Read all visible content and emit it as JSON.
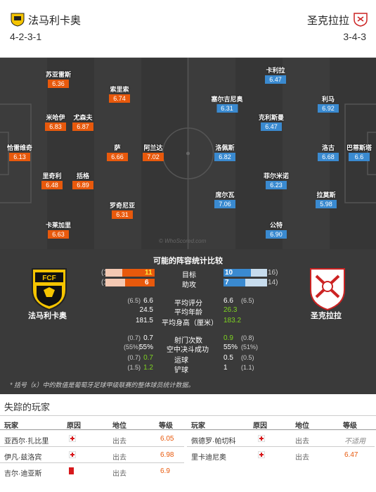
{
  "header": {
    "home_team": "法马利卡奥",
    "away_team": "圣克拉拉",
    "home_formation": "4-2-3-1",
    "away_formation": "3-4-3"
  },
  "pitch": {
    "watermark": "© WhoScored.com",
    "home_players": [
      {
        "name": "苏亚雷斯",
        "rating": "6.36"
      },
      {
        "name": "索里索",
        "rating": "6.74"
      },
      {
        "name": "米哈伊",
        "rating": "6.83"
      },
      {
        "name": "尤森夫",
        "rating": "6.87"
      },
      {
        "name": "恰雷维奇",
        "rating": "6.13"
      },
      {
        "name": "萨",
        "rating": "6.66"
      },
      {
        "name": "阿兰达",
        "rating": "7.02"
      },
      {
        "name": "里奇利",
        "rating": "6.48"
      },
      {
        "name": "括格",
        "rating": "6.89"
      },
      {
        "name": "罗奇尼亚",
        "rating": "6.31"
      },
      {
        "name": "卡莱加里",
        "rating": "6.63"
      }
    ],
    "away_players": [
      {
        "name": "卡利拉",
        "rating": "6.47"
      },
      {
        "name": "塞尔吉尼奥",
        "rating": "6.31"
      },
      {
        "name": "利马",
        "rating": "6.92"
      },
      {
        "name": "克利斯曼",
        "rating": "6.47"
      },
      {
        "name": "洛佩斯",
        "rating": "6.82"
      },
      {
        "name": "洛古",
        "rating": "6.68"
      },
      {
        "name": "巴蒂斯塔",
        "rating": "6.6"
      },
      {
        "name": "菲尔米诺",
        "rating": "6.23"
      },
      {
        "name": "席尔瓦",
        "rating": "7.06"
      },
      {
        "name": "拉莫斯",
        "rating": "5.98"
      },
      {
        "name": "公特",
        "rating": "6.90"
      }
    ]
  },
  "stats": {
    "title": "可能的阵容统计比较",
    "home_label": "法马利卡奥",
    "away_label": "圣克拉拉",
    "bars": [
      {
        "label": "目标",
        "home": "11",
        "away": "10",
        "home_total": "(17",
        "away_total": "16)",
        "home_share": 0.65,
        "away_share": 0.625
      },
      {
        "label": "助攻",
        "home": "6",
        "away": "7",
        "home_total": "(10",
        "away_total": "14)",
        "home_share": 0.6,
        "away_share": 0.5
      }
    ],
    "rows": [
      {
        "label": "平均评分",
        "home_paren": "(6.5)",
        "home": "6.6",
        "away": "6.6",
        "away_paren": "(6.5)",
        "away_green": false
      },
      {
        "label": "平均年龄",
        "home_paren": "",
        "home": "24.5",
        "away": "26.3",
        "away_paren": "",
        "away_green": true
      },
      {
        "label": "平均身高（厘米）",
        "home_paren": "",
        "home": "181.5",
        "away": "183.2",
        "away_paren": "",
        "away_green": true
      },
      {
        "label": "射门次数",
        "home_paren": "(0.7)",
        "home": "0.7",
        "away": "0.9",
        "away_paren": "(0.8)",
        "away_green": true
      },
      {
        "label": "空中决斗成功",
        "home_paren": "(55%)",
        "home": "55%",
        "away": "55%",
        "away_paren": "(51%)",
        "away_green": false
      },
      {
        "label": "运球",
        "home_paren": "(0.7)",
        "home": "0.7",
        "away": "0.5",
        "away_paren": "(0.5)",
        "away_green": false,
        "home_green": true
      },
      {
        "label": "铲球",
        "home_paren": "(1.5)",
        "home": "1.2",
        "away": "1",
        "away_paren": "(1.1)",
        "away_green": false,
        "home_green": true
      }
    ],
    "footnote": "* 括号（x）中的数值是葡萄牙足球甲级联赛的整体球员统计数据。"
  },
  "missing": {
    "title": "失踪的玩家",
    "headers": [
      "玩家",
      "原因",
      "地位",
      "等级"
    ],
    "home_rows": [
      {
        "player": "亚西尔·扎比里",
        "reason": "injury",
        "status": "出去",
        "rating": "6.05"
      },
      {
        "player": "伊凡·兹洛宾",
        "reason": "injury",
        "status": "出去",
        "rating": "6.98"
      },
      {
        "player": "吉尔·迪亚斯",
        "reason": "redcard",
        "status": "出去",
        "rating": "6.9"
      }
    ],
    "away_rows": [
      {
        "player": "佩德罗·帕切科",
        "reason": "injury",
        "status": "出去",
        "rating": "不适用"
      },
      {
        "player": "里卡迪尼奥",
        "reason": "injury",
        "status": "出去",
        "rating": "6.47"
      }
    ]
  }
}
